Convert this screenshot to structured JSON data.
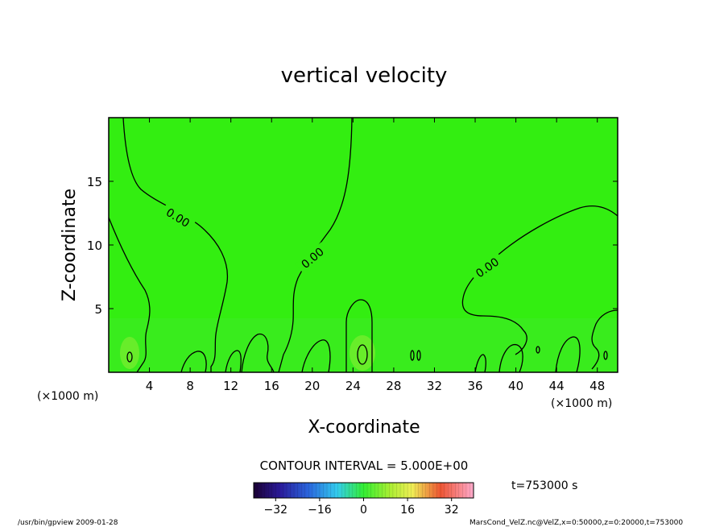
{
  "chart_data": {
    "type": "contour",
    "title": "vertical velocity",
    "xlabel": "X-coordinate",
    "ylabel": "Z-coordinate",
    "x_unit": "(×1000 m)",
    "xlim": [
      0,
      50
    ],
    "ylim": [
      0,
      20
    ],
    "x_ticks": [
      4,
      8,
      12,
      16,
      20,
      24,
      28,
      32,
      36,
      40,
      44,
      48
    ],
    "y_ticks": [
      5,
      10,
      15
    ],
    "contour_interval_text": "CONTOUR INTERVAL = 5.000E+00",
    "contour_labels": [
      "0.00",
      "0.00",
      "0.00"
    ],
    "field_color": "#33ee11",
    "colorbar": {
      "range": [
        -40,
        40
      ],
      "ticks": [
        -32,
        -16,
        0,
        16,
        32
      ],
      "colormap": "rainbow"
    },
    "time_label": "t=753000 s",
    "footer_left": "/usr/bin/gpview  2009-01-28",
    "footer_right": "MarsCond_VelZ.nc@VelZ,x=0:50000,z=0:20000,t=753000"
  }
}
